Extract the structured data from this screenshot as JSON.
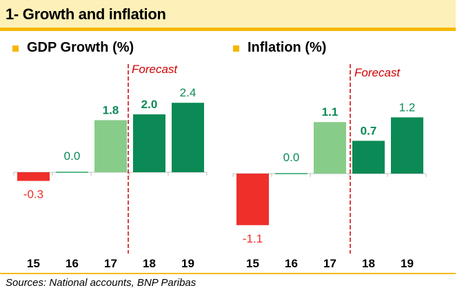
{
  "header": {
    "title": "1- Growth and inflation"
  },
  "source": "Sources: National accounts, BNP Paribas",
  "colors": {
    "negative": "#ee2f2a",
    "neutral": "#5bb98a",
    "light_green": "#88cc8a",
    "dark_green": "#0b8a55",
    "forecast_line": "#cc0000",
    "accent": "#f5b800"
  },
  "chart_data": [
    {
      "type": "bar",
      "title": "GDP Growth (%)",
      "categories": [
        "15",
        "16",
        "17",
        "18",
        "19"
      ],
      "values": [
        -0.3,
        0.0,
        1.8,
        2.0,
        2.4
      ],
      "labels": [
        "-0.3",
        "0.0",
        "1.8",
        "2.0",
        "2.4"
      ],
      "label_bold": [
        false,
        false,
        true,
        true,
        false
      ],
      "bar_colors": [
        "negative",
        "neutral",
        "light_green",
        "dark_green",
        "dark_green"
      ],
      "forecast_label": "Forecast",
      "forecast_after_index": 2,
      "ylim": [
        -1.1,
        2.4
      ]
    },
    {
      "type": "bar",
      "title": "Inflation (%)",
      "categories": [
        "15",
        "16",
        "17",
        "18",
        "19"
      ],
      "values": [
        -1.1,
        0.0,
        1.1,
        0.7,
        1.2
      ],
      "labels": [
        "-1.1",
        "0.0",
        "1.1",
        "0.7",
        "1.2"
      ],
      "label_bold": [
        false,
        false,
        true,
        true,
        false
      ],
      "bar_colors": [
        "negative",
        "neutral",
        "light_green",
        "dark_green",
        "dark_green"
      ],
      "forecast_label": "Forecast",
      "forecast_after_index": 2,
      "ylim": [
        -1.1,
        1.2
      ]
    }
  ]
}
